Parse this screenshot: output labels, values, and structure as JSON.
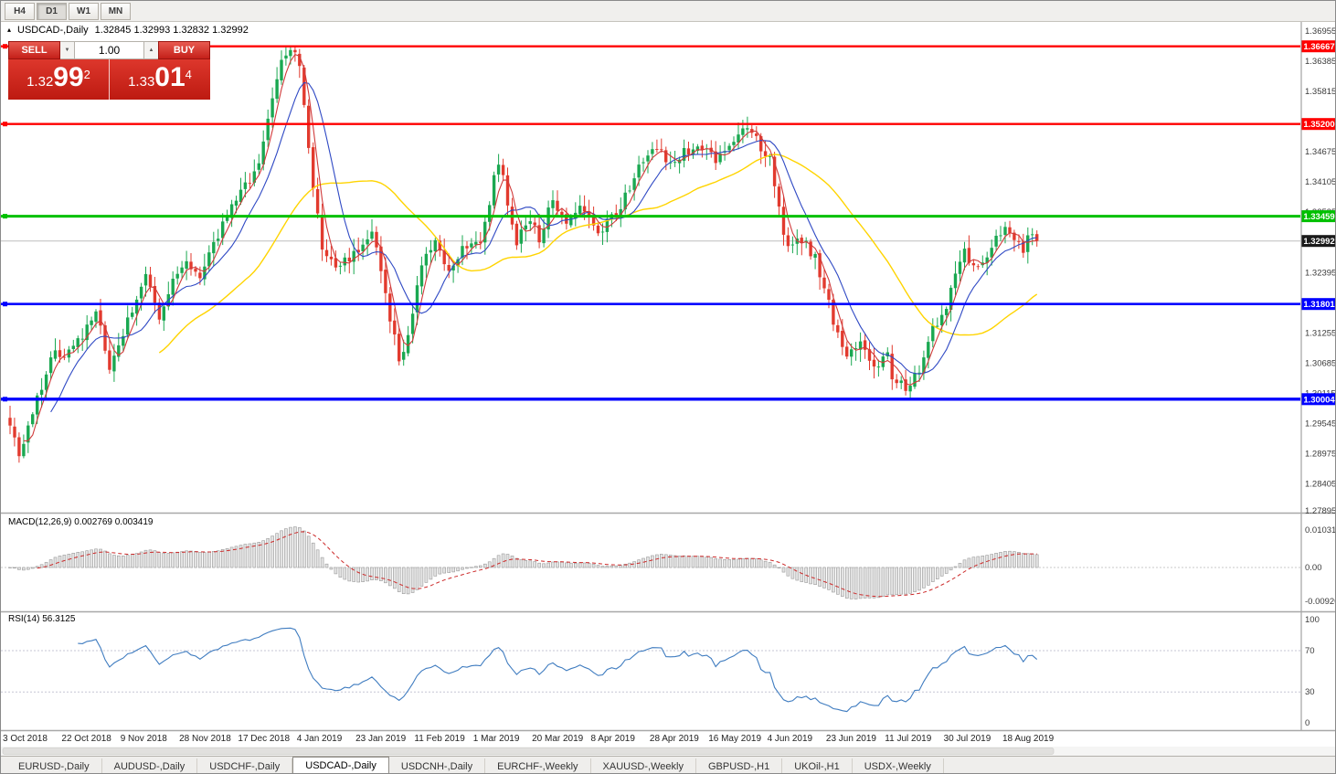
{
  "toolbar": {
    "timeframes": [
      "H4",
      "D1",
      "W1",
      "MN"
    ],
    "active": "D1"
  },
  "icons": {
    "collapse": "▴",
    "vol_down": "▼",
    "vol_up": "▲"
  },
  "chart": {
    "title_symbol": "USDCAD-,Daily",
    "ohlc_text": "1.32845 1.32993 1.32832 1.32992",
    "trade_panel": {
      "sell_label": "SELL",
      "buy_label": "BUY",
      "volume": "1.00",
      "bid": {
        "prefix": "1.32",
        "pips": "99",
        "pipette": "2"
      },
      "ask": {
        "prefix": "1.33",
        "pips": "01",
        "pipette": "4"
      }
    }
  },
  "chart_data": {
    "type": "candlestick",
    "symbol": "USDCAD",
    "timeframe": "Daily",
    "title": "USDCAD-,Daily 1.32845 1.32993 1.32832 1.32992",
    "y_range": {
      "top": 1.36955,
      "bottom": 1.27895
    },
    "current_price": {
      "value": 1.32992,
      "label": "1.32992"
    },
    "up_color": "#1aa851",
    "down_color": "#e23a2e",
    "ma_colors": {
      "fast": "#d03a3a",
      "mid": "#2f49c4",
      "slow": "#ffd400"
    },
    "closes": [
      1.296,
      1.292,
      1.289,
      1.2918,
      1.2947,
      1.2975,
      1.3001,
      1.3028,
      1.3054,
      1.308,
      1.3083,
      1.3085,
      1.3088,
      1.309,
      1.31,
      1.311,
      1.312,
      1.3137,
      1.3153,
      1.317,
      1.313,
      1.309,
      1.305,
      1.3075,
      1.31,
      1.3125,
      1.315,
      1.317,
      1.319,
      1.321,
      1.323,
      1.3203,
      1.3177,
      1.315,
      1.3173,
      1.3197,
      1.322,
      1.3237,
      1.3253,
      1.327,
      1.3253,
      1.3237,
      1.322,
      1.3243,
      1.3267,
      1.329,
      1.331,
      1.333,
      1.335,
      1.3363,
      1.3375,
      1.3388,
      1.34,
      1.3417,
      1.3433,
      1.345,
      1.3487,
      1.3523,
      1.356,
      1.36,
      1.364,
      1.365,
      1.366,
      1.3645,
      1.363,
      1.356,
      1.348,
      1.34,
      1.3345,
      1.329,
      1.3277,
      1.3263,
      1.325,
      1.3257,
      1.3263,
      1.327,
      1.3277,
      1.3283,
      1.329,
      1.33,
      1.331,
      1.328,
      1.325,
      1.32,
      1.315,
      1.3115,
      1.308,
      1.31,
      1.312,
      1.3163,
      1.3207,
      1.325,
      1.3267,
      1.3283,
      1.33,
      1.328,
      1.326,
      1.324,
      1.3257,
      1.3273,
      1.329,
      1.3293,
      1.3295,
      1.3298,
      1.33,
      1.3338,
      1.3375,
      1.3413,
      1.345,
      1.3413,
      1.3375,
      1.3338,
      1.33,
      1.3313,
      1.3327,
      1.334,
      1.332,
      1.33,
      1.3327,
      1.3353,
      1.338,
      1.3367,
      1.3353,
      1.334,
      1.3347,
      1.3353,
      1.336,
      1.335,
      1.334,
      1.333,
      1.332,
      1.3327,
      1.3333,
      1.334,
      1.3353,
      1.3367,
      1.338,
      1.3403,
      1.3427,
      1.345,
      1.3458,
      1.3465,
      1.3473,
      1.348,
      1.3467,
      1.3453,
      1.344,
      1.345,
      1.346,
      1.347,
      1.3473,
      1.3477,
      1.348,
      1.3473,
      1.3465,
      1.3458,
      1.345,
      1.346,
      1.347,
      1.348,
      1.3493,
      1.3507,
      1.352,
      1.351,
      1.35,
      1.349,
      1.3477,
      1.3463,
      1.345,
      1.34,
      1.336,
      1.332,
      1.328,
      1.3287,
      1.3293,
      1.33,
      1.329,
      1.328,
      1.327,
      1.324,
      1.321,
      1.318,
      1.314,
      1.312,
      1.31,
      1.308,
      1.309,
      1.31,
      1.311,
      1.3093,
      1.3077,
      1.306,
      1.3067,
      1.3073,
      1.308,
      1.304,
      1.3033,
      1.3027,
      1.302,
      1.3033,
      1.3047,
      1.306,
      1.3083,
      1.3107,
      1.313,
      1.3147,
      1.3163,
      1.318,
      1.321,
      1.3233,
      1.3257,
      1.328,
      1.3267,
      1.3253,
      1.324,
      1.3257,
      1.3273,
      1.329,
      1.33,
      1.331,
      1.332,
      1.331,
      1.33,
      1.329,
      1.328,
      1.33,
      1.332,
      1.32992
    ],
    "x_labels": [
      {
        "i": 0,
        "t": "3 Oct 2018"
      },
      {
        "i": 13,
        "t": "22 Oct 2018"
      },
      {
        "i": 26,
        "t": "9 Nov 2018"
      },
      {
        "i": 39,
        "t": "28 Nov 2018"
      },
      {
        "i": 52,
        "t": "17 Dec 2018"
      },
      {
        "i": 65,
        "t": "4 Jan 2019"
      },
      {
        "i": 78,
        "t": "23 Jan 2019"
      },
      {
        "i": 91,
        "t": "11 Feb 2019"
      },
      {
        "i": 104,
        "t": "1 Mar 2019"
      },
      {
        "i": 117,
        "t": "20 Mar 2019"
      },
      {
        "i": 130,
        "t": "8 Apr 2019"
      },
      {
        "i": 143,
        "t": "28 Apr 2019"
      },
      {
        "i": 156,
        "t": "16 May 2019"
      },
      {
        "i": 169,
        "t": "4 Jun 2019"
      },
      {
        "i": 182,
        "t": "23 Jun 2019"
      },
      {
        "i": 195,
        "t": "11 Jul 2019"
      },
      {
        "i": 208,
        "t": "30 Jul 2019"
      },
      {
        "i": 221,
        "t": "18 Aug 2019"
      }
    ],
    "y_ticks": [
      "1.36955",
      "1.36385",
      "1.35815",
      "1.35245",
      "1.34675",
      "1.34105",
      "1.33535",
      "1.32965",
      "1.32395",
      "1.31825",
      "1.31255",
      "1.30685",
      "1.30115",
      "1.29545",
      "1.28975",
      "1.28405",
      "1.27895"
    ],
    "hlines": [
      {
        "price": 1.36667,
        "label": "1.36667",
        "color": "#ff0000",
        "width": 2.4
      },
      {
        "price": 1.352,
        "label": "1.35200",
        "color": "#ff0000",
        "width": 2.4
      },
      {
        "price": 1.33459,
        "label": "1.33459",
        "color": "#00c000",
        "width": 3.0
      },
      {
        "price": 1.31801,
        "label": "1.31801",
        "color": "#0000ff",
        "width": 2.6
      },
      {
        "price": 1.30004,
        "label": "1.30004",
        "color": "#0000ff",
        "width": 3.4
      }
    ],
    "indicators": {
      "macd": {
        "title": "MACD(12,26,9) 0.002769 0.003419",
        "params": [
          12,
          26,
          9
        ],
        "values": [
          0.002769,
          0.003419
        ],
        "axis_labels": [
          "0.010311",
          "0.00",
          "-0.009203"
        ]
      },
      "rsi": {
        "title": "RSI(14) 56.3125",
        "period": 14,
        "value": 56.3125,
        "levels": [
          70,
          30
        ],
        "axis_labels": [
          "100",
          "70",
          "30",
          "0"
        ]
      }
    }
  },
  "tabs": {
    "items": [
      "EURUSD-,Daily",
      "AUDUSD-,Daily",
      "USDCHF-,Daily",
      "USDCAD-,Daily",
      "USDCNH-,Daily",
      "EURCHF-,Weekly",
      "XAUUSD-,Weekly",
      "GBPUSD-,H1",
      "UKOil-,H1",
      "USDX-,Weekly"
    ],
    "active_index": 3
  }
}
